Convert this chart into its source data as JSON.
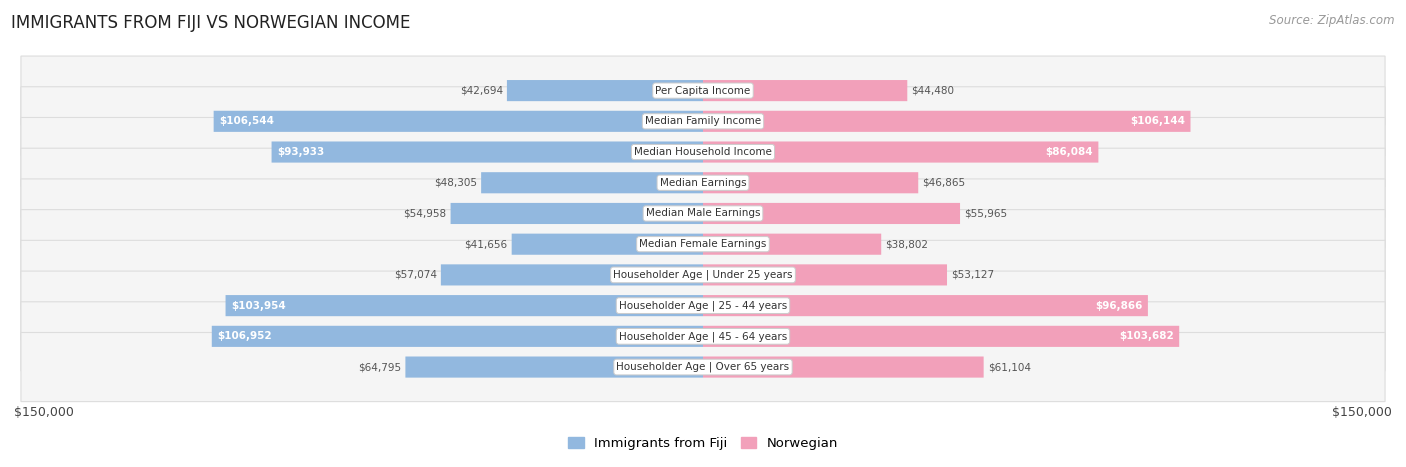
{
  "title": "IMMIGRANTS FROM FIJI VS NORWEGIAN INCOME",
  "source": "Source: ZipAtlas.com",
  "categories": [
    "Per Capita Income",
    "Median Family Income",
    "Median Household Income",
    "Median Earnings",
    "Median Male Earnings",
    "Median Female Earnings",
    "Householder Age | Under 25 years",
    "Householder Age | 25 - 44 years",
    "Householder Age | 45 - 64 years",
    "Householder Age | Over 65 years"
  ],
  "fiji_values": [
    42694,
    106544,
    93933,
    48305,
    54958,
    41656,
    57074,
    103954,
    106952,
    64795
  ],
  "norwegian_values": [
    44480,
    106144,
    86084,
    46865,
    55965,
    38802,
    53127,
    96866,
    103682,
    61104
  ],
  "max_val": 150000,
  "fiji_color": "#92b8df",
  "norwegian_color": "#f2a0ba",
  "fiji_label": "Immigrants from Fiji",
  "norwegian_label": "Norwegian",
  "bg_color": "#ffffff",
  "row_bg_light": "#f5f5f5",
  "row_border": "#dddddd",
  "x_label_left": "$150,000",
  "x_label_right": "$150,000",
  "inside_label_color": "#ffffff",
  "outside_label_color": "#555555",
  "inside_threshold": 70000
}
